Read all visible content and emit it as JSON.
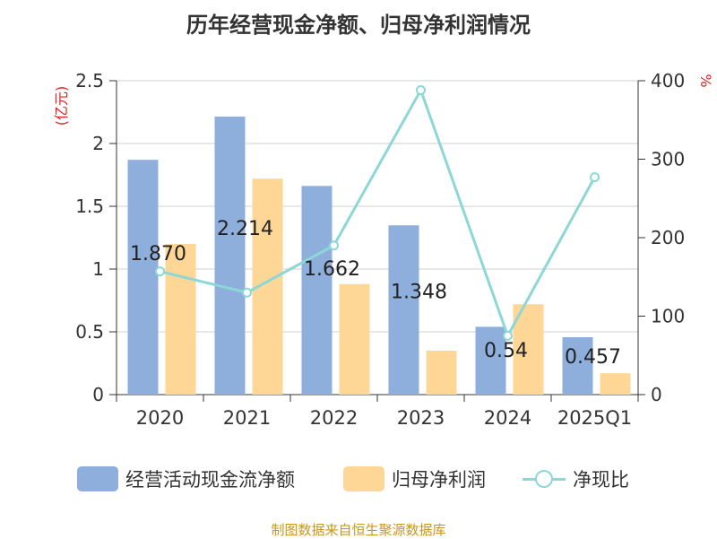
{
  "chart_data": {
    "type": "bar",
    "title": "历年经营现金净额、归母净利润情况",
    "categories": [
      "2020",
      "2021",
      "2022",
      "2023",
      "2024",
      "2025Q1"
    ],
    "y_left": {
      "label": "(亿元)",
      "range": [
        0,
        2.5
      ],
      "ticks": [
        "0",
        "0.5",
        "1",
        "1.5",
        "2",
        "2.5"
      ]
    },
    "y_right": {
      "label": "%",
      "range": [
        0,
        400
      ],
      "ticks": [
        "0",
        "100",
        "200",
        "300",
        "400"
      ]
    },
    "series": [
      {
        "name": "经营活动现金流净额",
        "axis": "left",
        "kind": "bar",
        "color": "#8eaedc",
        "values": [
          1.87,
          2.214,
          1.662,
          1.348,
          0.54,
          0.457
        ],
        "labels": [
          "1.870",
          "2.214",
          "1.662",
          "1.348",
          "0.54",
          "0.457"
        ]
      },
      {
        "name": "归母净利润",
        "axis": "left",
        "kind": "bar",
        "color": "#fed797",
        "values": [
          1.2,
          1.72,
          0.88,
          0.35,
          0.72,
          0.17
        ]
      },
      {
        "name": "净现比",
        "axis": "right",
        "kind": "line",
        "color": "#8dd7d7",
        "values": [
          157,
          130,
          190,
          388,
          75,
          277
        ]
      }
    ],
    "grid": true,
    "legend_position": "bottom"
  },
  "source": "制图数据来自恒生聚源数据库"
}
